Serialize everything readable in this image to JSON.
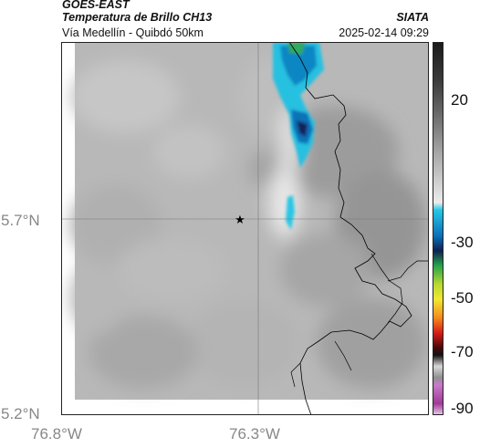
{
  "header": {
    "satellite": "GOES-EAST",
    "product": "Temperatura de Brillo CH13",
    "route": "Vía Medellín - Quibdó 50km",
    "organization": "SIATA",
    "datetime": "2025-02-14 09:29"
  },
  "map": {
    "lat_ticks": [
      {
        "value": 5.7,
        "label": "5.7°N"
      },
      {
        "value": 5.2,
        "label": "5.2°N"
      }
    ],
    "lon_ticks": [
      {
        "value": -76.8,
        "label": "76.8°W"
      },
      {
        "value": -76.3,
        "label": "76.3°W"
      }
    ],
    "marker": {
      "icon": "star-icon",
      "lat": 5.7,
      "lon": -76.33
    },
    "grid": true
  },
  "colorbar": {
    "ticks": [
      {
        "value": 20,
        "label": "20"
      },
      {
        "value": -30,
        "label": "-30"
      },
      {
        "value": -50,
        "label": "-50"
      },
      {
        "value": -70,
        "label": "-70"
      },
      {
        "value": -90,
        "label": "-90"
      }
    ]
  }
}
